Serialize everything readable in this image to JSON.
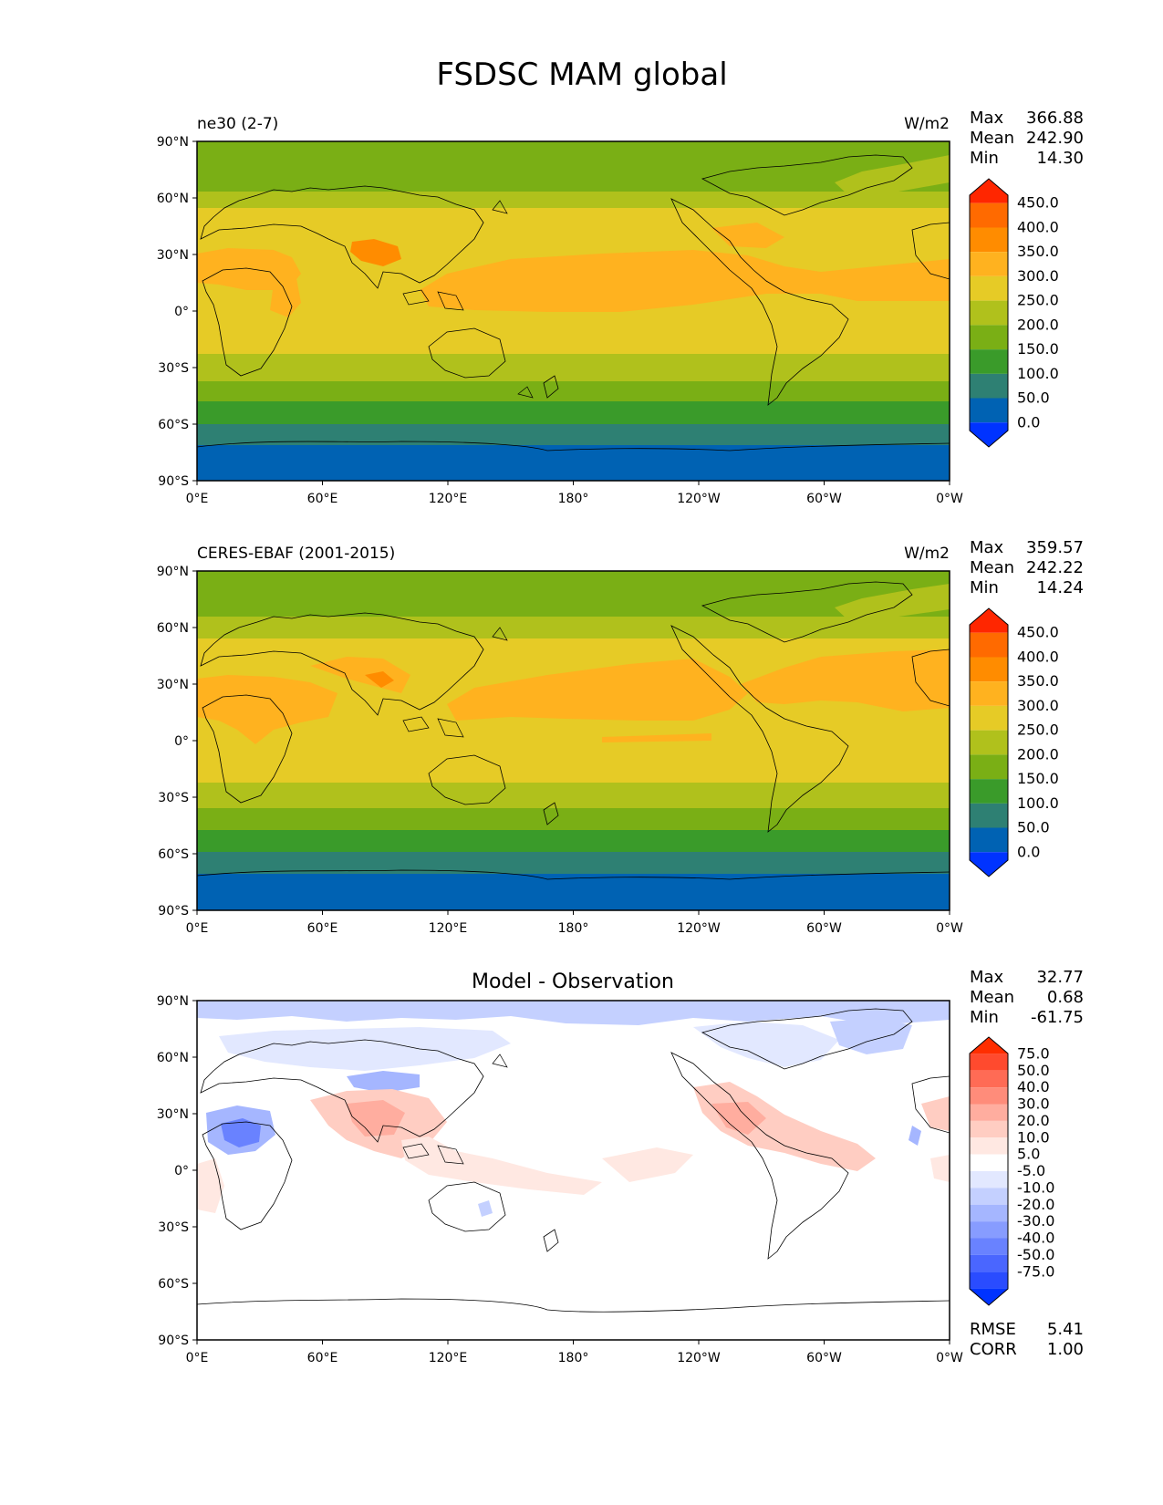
{
  "figure": {
    "title": "FSDSC MAM global",
    "lat_ticks": [
      "90°N",
      "60°N",
      "30°N",
      "0°",
      "30°S",
      "60°S",
      "90°S"
    ],
    "lon_ticks": [
      "0°E",
      "60°E",
      "120°E",
      "180°",
      "120°W",
      "60°W",
      "0°W"
    ]
  },
  "panels": [
    {
      "title_left": "ne30 (2-7)",
      "units": "W/m2",
      "stats": [
        {
          "label": "Max",
          "value": "366.88"
        },
        {
          "label": "Mean",
          "value": "242.90"
        },
        {
          "label": "Min",
          "value": "14.30"
        }
      ],
      "colorbar": {
        "levels": [
          "450.0",
          "400.0",
          "350.0",
          "300.0",
          "250.0",
          "200.0",
          "150.0",
          "100.0",
          "50.0",
          "0.0"
        ],
        "colors": [
          "#ff2600",
          "#ff6a00",
          "#ff8c00",
          "#ffb21f",
          "#e6cb26",
          "#b0c11c",
          "#7aaf15",
          "#3a9b2a",
          "#2e8073",
          "#0062b3",
          "#0033ff"
        ]
      }
    },
    {
      "title_left": "CERES-EBAF (2001-2015)",
      "units": "W/m2",
      "stats": [
        {
          "label": "Max",
          "value": "359.57"
        },
        {
          "label": "Mean",
          "value": "242.22"
        },
        {
          "label": "Min",
          "value": "14.24"
        }
      ],
      "colorbar": {
        "levels": [
          "450.0",
          "400.0",
          "350.0",
          "300.0",
          "250.0",
          "200.0",
          "150.0",
          "100.0",
          "50.0",
          "0.0"
        ],
        "colors": [
          "#ff2600",
          "#ff6a00",
          "#ff8c00",
          "#ffb21f",
          "#e6cb26",
          "#b0c11c",
          "#7aaf15",
          "#3a9b2a",
          "#2e8073",
          "#0062b3",
          "#0033ff"
        ]
      }
    },
    {
      "title_center": "Model - Observation",
      "stats": [
        {
          "label": "Max",
          "value": "32.77"
        },
        {
          "label": "Mean",
          "value": "0.68"
        },
        {
          "label": "Min",
          "value": "-61.75"
        }
      ],
      "colorbar": {
        "levels": [
          "75.0",
          "50.0",
          "40.0",
          "30.0",
          "20.0",
          "10.0",
          "5.0",
          "-5.0",
          "-10.0",
          "-20.0",
          "-30.0",
          "-40.0",
          "-50.0",
          "-75.0"
        ],
        "colors": [
          "#ff2e00",
          "#ff4a2e",
          "#ff6b55",
          "#ff8c7a",
          "#ffad9f",
          "#ffcdc2",
          "#ffe8e2",
          "#ffffff",
          "#e2e8ff",
          "#c4d0ff",
          "#a5b6ff",
          "#879cff",
          "#6982ff",
          "#4a66ff",
          "#2a4cff",
          "#0033ff"
        ]
      },
      "metrics": [
        {
          "label": "RMSE",
          "value": "5.41"
        },
        {
          "label": "CORR",
          "value": "1.00"
        }
      ]
    }
  ]
}
